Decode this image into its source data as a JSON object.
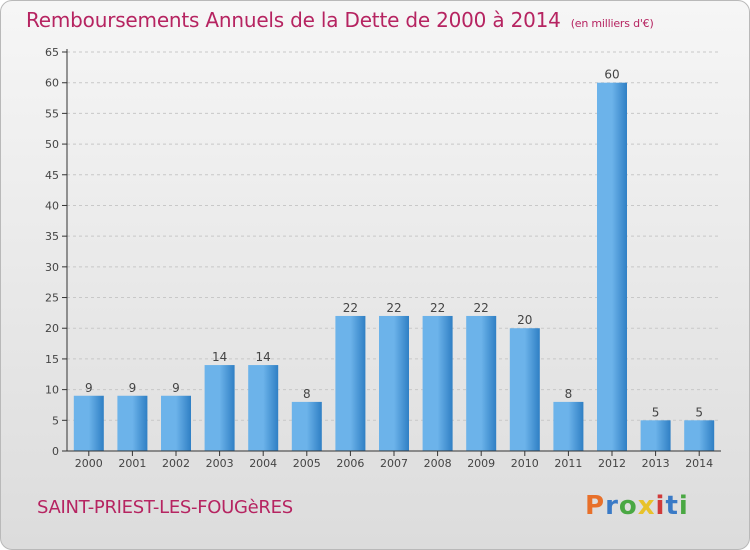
{
  "header": {
    "title": "Remboursements Annuels de la Dette de 2000 à 2014",
    "unit": "(en milliers d'€)"
  },
  "footer": {
    "commune": "SAINT-PRIEST-LES-FOUGèRES",
    "logo": "Proxiti",
    "logo_colors": [
      "#e8702a",
      "#3a7ac6",
      "#4aa843",
      "#e8c22a",
      "#d03a3a",
      "#3a7ac6",
      "#4aa843"
    ]
  },
  "colors": {
    "bar_light": "#6cb3ea",
    "bar_dark": "#2f7fc4",
    "title": "#b62461",
    "grid": "#c8c8c8",
    "axis": "#333333"
  },
  "chart_data": {
    "type": "bar",
    "title": "Remboursements Annuels de la Dette de 2000 à 2014",
    "xlabel": "",
    "ylabel": "",
    "categories": [
      "2000",
      "2001",
      "2002",
      "2003",
      "2004",
      "2005",
      "2006",
      "2007",
      "2008",
      "2009",
      "2010",
      "2011",
      "2012",
      "2013",
      "2014"
    ],
    "values": [
      9,
      9,
      9,
      14,
      14,
      8,
      22,
      22,
      22,
      22,
      20,
      8,
      60,
      5,
      5
    ],
    "ylim": [
      0,
      65
    ],
    "yticks": [
      0,
      5,
      10,
      15,
      20,
      25,
      30,
      35,
      40,
      45,
      50,
      55,
      60,
      65
    ],
    "grid": true
  }
}
